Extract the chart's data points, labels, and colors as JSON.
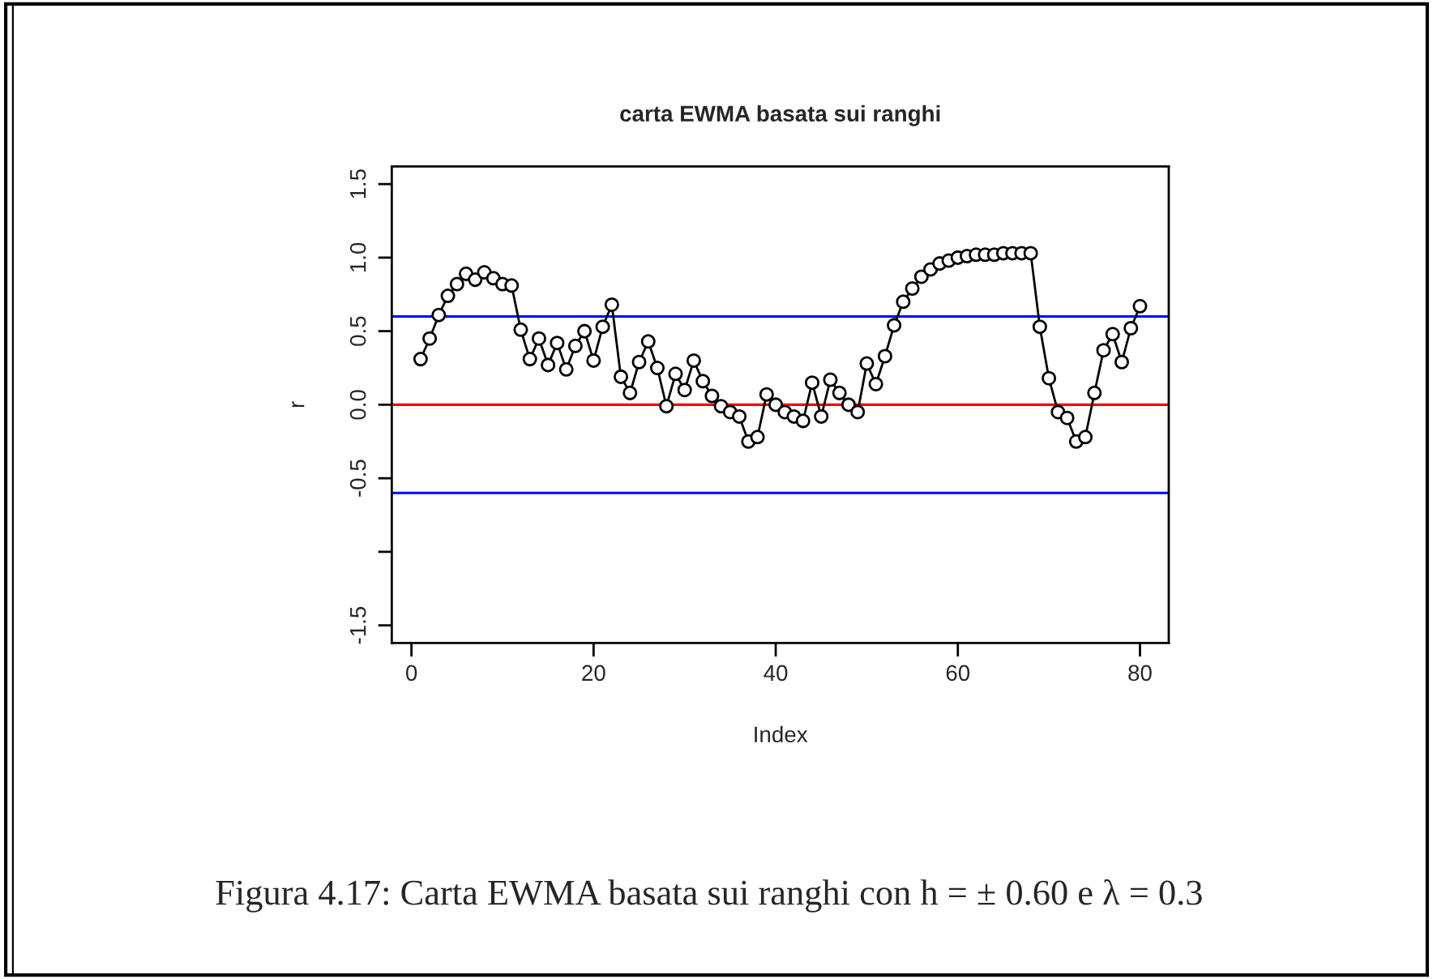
{
  "chart_data": {
    "type": "line",
    "title": "carta EWMA basata sui ranghi",
    "xlabel": "Index",
    "ylabel": "r",
    "x": [
      1,
      2,
      3,
      4,
      5,
      6,
      7,
      8,
      9,
      10,
      11,
      12,
      13,
      14,
      15,
      16,
      17,
      18,
      19,
      20,
      21,
      22,
      23,
      24,
      25,
      26,
      27,
      28,
      29,
      30,
      31,
      32,
      33,
      34,
      35,
      36,
      37,
      38,
      39,
      40,
      41,
      42,
      43,
      44,
      45,
      46,
      47,
      48,
      49,
      50,
      51,
      52,
      53,
      54,
      55,
      56,
      57,
      58,
      59,
      60,
      61,
      62,
      63,
      64,
      65,
      66,
      67,
      68,
      69,
      70,
      71,
      72,
      73,
      74,
      75,
      76,
      77,
      78,
      79,
      80
    ],
    "series": [
      {
        "color": "#000000",
        "values": [
          0.31,
          0.45,
          0.61,
          0.74,
          0.82,
          0.89,
          0.85,
          0.9,
          0.86,
          0.82,
          0.81,
          0.51,
          0.31,
          0.45,
          0.27,
          0.42,
          0.24,
          0.4,
          0.5,
          0.3,
          0.53,
          0.68,
          0.19,
          0.08,
          0.29,
          0.43,
          0.25,
          -0.01,
          0.21,
          0.1,
          0.3,
          0.16,
          0.06,
          -0.01,
          -0.05,
          -0.08,
          -0.25,
          -0.22,
          0.07,
          0.0,
          -0.05,
          -0.08,
          -0.11,
          0.15,
          -0.08,
          0.17,
          0.08,
          0.0,
          -0.05,
          0.28,
          0.14,
          0.33,
          0.54,
          0.7,
          0.79,
          0.87,
          0.92,
          0.96,
          0.98,
          1.0,
          1.01,
          1.02,
          1.02,
          1.02,
          1.03,
          1.03,
          1.03,
          1.03,
          0.53,
          0.18,
          -0.05,
          -0.09,
          -0.25,
          -0.22,
          0.08,
          0.37,
          0.48,
          0.29,
          0.52,
          0.67
        ]
      }
    ],
    "xlim": [
      -2.16,
      83.16
    ],
    "ylim": [
      -1.62,
      1.62
    ],
    "xticks": [
      0,
      20,
      40,
      60,
      80
    ],
    "yticks": [
      -1.5,
      {
        "value": -1.0,
        "label": null
      },
      -0.5,
      {
        "value": 0,
        "label": "0.0"
      },
      0.5,
      {
        "value": 1,
        "label": "1.0"
      },
      1.5
    ],
    "ref_lines": [
      {
        "axis": "y",
        "value": 0.6,
        "color": "#0000ff"
      },
      {
        "axis": "y",
        "value": 0.0,
        "color": "#ff0000"
      },
      {
        "axis": "y",
        "value": -0.6,
        "color": "#0000ff"
      }
    ],
    "marker": "circle",
    "line_style": "solid",
    "grid": false,
    "legend": false,
    "annotations": [
      "Figura 4.17: Carta EWMA basata sui ranghi con h = ± 0.60 e λ = 0.3"
    ]
  }
}
